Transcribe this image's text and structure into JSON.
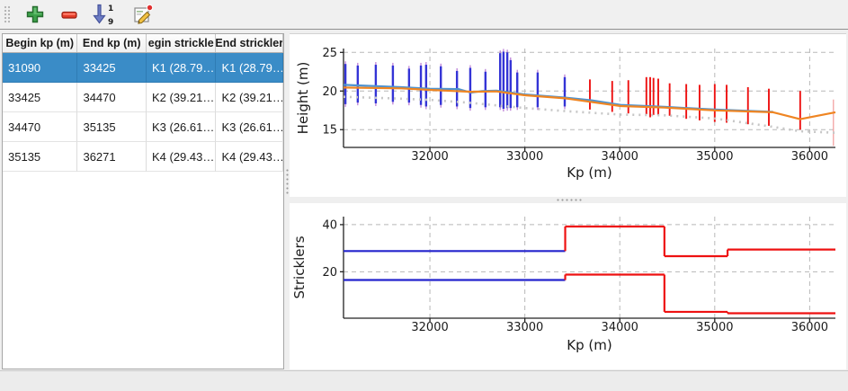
{
  "toolbar": {
    "buttons": [
      {
        "name": "add-button",
        "icon": "plus-icon"
      },
      {
        "name": "remove-button",
        "icon": "minus-icon"
      },
      {
        "name": "sort-button",
        "icon": "sort-1-9-icon"
      },
      {
        "name": "edit-button",
        "icon": "edit-pencil-icon"
      }
    ],
    "sort_numbers": [
      "1",
      "9"
    ]
  },
  "table": {
    "columns": [
      {
        "label": "Begin kp (m)"
      },
      {
        "label": "End kp (m)"
      },
      {
        "label": "egin strickle"
      },
      {
        "label": "End strickler"
      }
    ],
    "rows": [
      [
        "31090",
        "33425",
        "K1 (28.79…",
        "K1 (28.79…"
      ],
      [
        "33425",
        "34470",
        "K2 (39.21…",
        "K2 (39.21…"
      ],
      [
        "34470",
        "35135",
        "K3 (26.61…",
        "K3 (26.61…"
      ],
      [
        "35135",
        "36271",
        "K4 (29.43…",
        "K4 (29.43…"
      ]
    ],
    "selected_row": 0,
    "selection_color": "#3a8cc7"
  },
  "palette": {
    "blue": "#2323cd",
    "red": "#ee1111",
    "spike_blue": "#3434d6",
    "spike_magenta": "#b06ad0",
    "faint": "#f29a9a",
    "grid": "#b8b8b8",
    "spine": "#222222"
  },
  "chart_data": [
    {
      "type": "line",
      "title": "",
      "xlabel": "Kp (m)",
      "ylabel": "Height (m)",
      "xlim": [
        31090,
        36271
      ],
      "ylim": [
        12.7,
        25.5
      ],
      "xticks": [
        32000,
        33000,
        34000,
        35000,
        36000
      ],
      "yticks": [
        15,
        20,
        25
      ],
      "grid": true,
      "legend": "none",
      "series": [
        {
          "name": "water-line-blue",
          "color": "#4f93cf",
          "width": 2.2,
          "dash": "",
          "points": [
            [
              31090,
              20.8
            ],
            [
              31700,
              20.5
            ],
            [
              32000,
              20.3
            ],
            [
              32300,
              20.25
            ],
            [
              32430,
              19.8
            ],
            [
              32550,
              20.0
            ],
            [
              32700,
              20.05
            ],
            [
              33000,
              19.55
            ],
            [
              33425,
              19.15
            ],
            [
              33700,
              18.8
            ],
            [
              34010,
              18.2
            ],
            [
              34470,
              17.95
            ],
            [
              35000,
              17.6
            ],
            [
              35615,
              17.3
            ]
          ]
        },
        {
          "name": "water-line-orange",
          "color": "#ef8522",
          "width": 2.2,
          "dash": "",
          "points": [
            [
              31090,
              20.45
            ],
            [
              31700,
              20.35
            ],
            [
              32000,
              20.15
            ],
            [
              32430,
              19.9
            ],
            [
              32700,
              19.95
            ],
            [
              33000,
              19.45
            ],
            [
              33425,
              19.05
            ],
            [
              34010,
              18.05
            ],
            [
              34470,
              17.85
            ],
            [
              35000,
              17.5
            ],
            [
              35615,
              17.25
            ],
            [
              35900,
              16.35
            ],
            [
              36271,
              17.25
            ]
          ]
        },
        {
          "name": "bed-line-dotted",
          "color": "#c7c7c7",
          "width": 2.6,
          "dash": "2 5",
          "points": [
            [
              31090,
              19.25
            ],
            [
              31600,
              19.05
            ],
            [
              32000,
              18.85
            ],
            [
              32400,
              18.5
            ],
            [
              32700,
              18.15
            ],
            [
              33000,
              17.8
            ],
            [
              33425,
              17.4
            ],
            [
              34010,
              16.95
            ],
            [
              34470,
              16.85
            ],
            [
              35000,
              16.45
            ],
            [
              35570,
              15.45
            ],
            [
              35900,
              14.8
            ],
            [
              36271,
              14.6
            ]
          ]
        }
      ],
      "spikes": [
        [
          31110,
          23.5,
          18.3,
          "blue"
        ],
        [
          31240,
          23.3,
          18.5,
          "blue"
        ],
        [
          31430,
          23.4,
          18.4,
          "blue"
        ],
        [
          31610,
          23.3,
          18.6,
          "blue"
        ],
        [
          31780,
          22.9,
          18.5,
          "blue"
        ],
        [
          31905,
          23.3,
          18.2,
          "blue"
        ],
        [
          31960,
          23.4,
          18.0,
          "blue"
        ],
        [
          32115,
          23.2,
          18.2,
          "blue"
        ],
        [
          32285,
          22.6,
          18.0,
          "blue"
        ],
        [
          32425,
          23.0,
          17.8,
          "blue"
        ],
        [
          32585,
          22.5,
          17.9,
          "blue"
        ],
        [
          32740,
          24.9,
          17.9,
          "blue"
        ],
        [
          32775,
          25.1,
          17.7,
          "blue"
        ],
        [
          32815,
          25.0,
          17.8,
          "blue"
        ],
        [
          32850,
          24.0,
          17.8,
          "blue"
        ],
        [
          32920,
          22.4,
          17.9,
          "blue"
        ],
        [
          33135,
          22.4,
          17.9,
          "blue"
        ],
        [
          33420,
          21.8,
          18.0,
          "blue"
        ],
        [
          33685,
          21.5,
          17.6,
          "red"
        ],
        [
          33920,
          21.3,
          17.3,
          "red"
        ],
        [
          34090,
          21.4,
          17.1,
          "red"
        ],
        [
          34280,
          21.8,
          17.0,
          "red"
        ],
        [
          34320,
          21.8,
          16.6,
          "red"
        ],
        [
          34355,
          21.7,
          16.9,
          "red"
        ],
        [
          34405,
          21.6,
          16.9,
          "red"
        ],
        [
          34525,
          21.0,
          16.8,
          "red"
        ],
        [
          34700,
          20.9,
          16.4,
          "red"
        ],
        [
          34840,
          20.8,
          16.2,
          "red"
        ],
        [
          35000,
          20.9,
          16.0,
          "red"
        ],
        [
          35125,
          20.8,
          15.9,
          "red"
        ],
        [
          35350,
          20.5,
          15.7,
          "red"
        ],
        [
          35570,
          20.3,
          15.5,
          "red"
        ],
        [
          35900,
          20.0,
          15.0,
          "red"
        ],
        [
          36250,
          18.9,
          12.9,
          "faint"
        ]
      ]
    },
    {
      "type": "step",
      "title": "",
      "xlabel": "Kp (m)",
      "ylabel": "Stricklers",
      "xlim": [
        31090,
        36271
      ],
      "ylim": [
        0.3,
        43.4
      ],
      "xticks": [
        32000,
        33000,
        34000,
        35000,
        36000
      ],
      "yticks": [
        20,
        40
      ],
      "grid": true,
      "legend": "none",
      "series": [
        {
          "name": "strickler-minor-bed",
          "width": 2.2,
          "segments": [
            [
              31090,
              33425,
              28.79,
              "blue"
            ],
            [
              33425,
              34470,
              39.21,
              "red"
            ],
            [
              34470,
              35135,
              26.61,
              "red"
            ],
            [
              35135,
              36271,
              29.43,
              "red"
            ]
          ]
        },
        {
          "name": "strickler-major-bed",
          "width": 2.2,
          "segments": [
            [
              31090,
              33425,
              16.5,
              "blue"
            ],
            [
              33425,
              34470,
              18.8,
              "red"
            ],
            [
              34470,
              35135,
              3.0,
              "red"
            ],
            [
              35135,
              36271,
              2.4,
              "red"
            ]
          ]
        }
      ]
    }
  ],
  "status_bar": {
    "text": ""
  }
}
